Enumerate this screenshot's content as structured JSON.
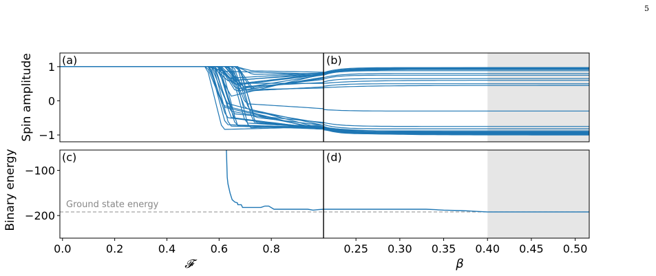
{
  "page_number": "5",
  "colors": {
    "series": "#1f77b4",
    "ground_line": "#999999",
    "ground_text": "#888888",
    "shade": "#e6e6e6",
    "axis": "#000000"
  },
  "chart_data": [
    {
      "panel": "(a)",
      "type": "line",
      "ylabel": "Spin amplitude",
      "xlim": [
        -0.01,
        1.0
      ],
      "ylim": [
        -1.2,
        1.4
      ],
      "yticks": [
        "−1",
        "0",
        "1"
      ],
      "ytick_values": [
        -1,
        0,
        1
      ],
      "series_count": 40,
      "initial_value": 1.0,
      "transition_range": [
        0.55,
        0.68
      ],
      "description": "Many spin trajectories held at 1 that split into values between -1 and 1 near F≈0.6"
    },
    {
      "panel": "(b)",
      "type": "line",
      "xlim": [
        0.213,
        0.516
      ],
      "ylim": [
        -1.2,
        1.4
      ],
      "shaded_region": [
        0.4,
        0.516
      ],
      "final_values": [
        0.97,
        0.95,
        0.92,
        0.88,
        0.8,
        0.75,
        0.65,
        0.6,
        0.5,
        0.45,
        -0.3,
        -0.75,
        -0.82,
        -0.88,
        -0.92,
        -0.95,
        -0.98,
        -1.0
      ]
    },
    {
      "panel": "(c)",
      "type": "line",
      "ylabel": "Binary energy",
      "xlabel": "𝓕",
      "xlim": [
        -0.01,
        1.0
      ],
      "ylim": [
        -250,
        -55
      ],
      "yticks": [
        "−100",
        "−200"
      ],
      "ytick_values": [
        -100,
        -200
      ],
      "xticks": [
        "0.0",
        "0.2",
        "0.4",
        "0.6",
        "0.8"
      ],
      "xtick_values": [
        0.0,
        0.2,
        0.4,
        0.6,
        0.8
      ],
      "ground_state_energy": -192,
      "ground_state_label": "Ground state energy",
      "points": [
        [
          0.628,
          -55
        ],
        [
          0.631,
          -115
        ],
        [
          0.634,
          -130
        ],
        [
          0.638,
          -140
        ],
        [
          0.642,
          -150
        ],
        [
          0.646,
          -158
        ],
        [
          0.65,
          -165
        ],
        [
          0.66,
          -170
        ],
        [
          0.67,
          -172
        ],
        [
          0.672,
          -176
        ],
        [
          0.685,
          -176
        ],
        [
          0.69,
          -182
        ],
        [
          0.76,
          -182
        ],
        [
          0.775,
          -179
        ],
        [
          0.79,
          -179
        ],
        [
          0.81,
          -186
        ],
        [
          0.94,
          -186
        ],
        [
          0.96,
          -188
        ],
        [
          0.98,
          -187
        ],
        [
          1.0,
          -186
        ]
      ]
    },
    {
      "panel": "(d)",
      "type": "line",
      "xlabel": "β",
      "xlim": [
        0.213,
        0.516
      ],
      "ylim": [
        -250,
        -55
      ],
      "xticks": [
        "0.25",
        "0.30",
        "0.35",
        "0.40",
        "0.45",
        "0.50"
      ],
      "xtick_values": [
        0.25,
        0.3,
        0.35,
        0.4,
        0.45,
        0.5
      ],
      "ground_state_energy": -192,
      "shaded_region": [
        0.4,
        0.516
      ],
      "points": [
        [
          0.213,
          -186
        ],
        [
          0.33,
          -186
        ],
        [
          0.34,
          -187
        ],
        [
          0.35,
          -188
        ],
        [
          0.37,
          -189
        ],
        [
          0.38,
          -190
        ],
        [
          0.39,
          -191
        ],
        [
          0.4,
          -192
        ],
        [
          0.516,
          -192
        ]
      ]
    }
  ]
}
